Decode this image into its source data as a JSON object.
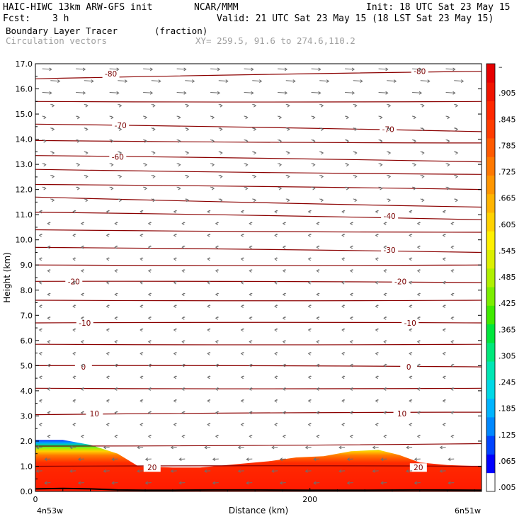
{
  "header": {
    "model": "HAIC-HIWC 13km ARW-GFS init",
    "org": "NCAR/MMM",
    "init": "Init: 18 UTC Sat 23 May 15",
    "fcst_label": "Fcst:",
    "fcst_value": "3 h",
    "valid": "Valid: 21 UTC Sat 23 May 15 (18 LST Sat 23 May 15)",
    "field_name": "Boundary Layer Tracer",
    "field_units": "(fraction)",
    "vector_name": "Circulation vectors",
    "xsec_coords": "XY= 259.5, 91.6 to 274.6,110.2",
    "top_right_tag": "...? |"
  },
  "colors": {
    "contour": "#8b0000",
    "vector": "#6e6e6e",
    "terrain": "#000000"
  },
  "chart_data": {
    "type": "heatmap",
    "xlabel": "Distance (km)",
    "ylabel": "Height (km)",
    "xlim": [
      0,
      325
    ],
    "ylim": [
      0,
      17
    ],
    "x_ticks": [
      {
        "v": 0,
        "label": "0"
      },
      {
        "v": 200,
        "label": "200"
      }
    ],
    "x_endpoints": [
      "4n53w",
      "6n51w"
    ],
    "y_ticks": [
      "0.0",
      "1.0",
      "2.0",
      "3.0",
      "4.0",
      "5.0",
      "6.0",
      "7.0",
      "8.0",
      "9.0",
      "10.0",
      "11.0",
      "12.0",
      "13.0",
      "14.0",
      "15.0",
      "16.0",
      "17.0"
    ],
    "colorbar": {
      "labels": [
        ".005",
        ".065",
        ".125",
        ".185",
        ".245",
        ".305",
        ".365",
        ".425",
        ".485",
        ".545",
        ".605",
        ".665",
        ".725",
        ".785",
        ".845",
        ".905",
        "–"
      ],
      "colors": [
        "#ffffff",
        "#0000ff",
        "#0044ff",
        "#0088ff",
        "#00b4ff",
        "#00d8e6",
        "#00e6b4",
        "#00e87a",
        "#00e63c",
        "#40ea00",
        "#7cee00",
        "#b0f000",
        "#dcf000",
        "#fff000",
        "#ffd200",
        "#ffb400",
        "#ff9600",
        "#ff7800",
        "#ff5a00",
        "#ff3c00",
        "#ff2800",
        "#f01400",
        "#e60000"
      ]
    },
    "isotherms": [
      {
        "label": "-80",
        "y": [
          16.4,
          16.7
        ],
        "label_pos": [
          [
            55,
            16.6
          ],
          [
            280,
            16.7
          ]
        ]
      },
      {
        "label": "",
        "y": [
          15.5,
          15.5
        ]
      },
      {
        "label": "-70",
        "y": [
          14.6,
          14.3
        ],
        "label_pos": [
          [
            62,
            14.55
          ],
          [
            257,
            14.4
          ]
        ]
      },
      {
        "label": "",
        "y": [
          13.95,
          13.85
        ]
      },
      {
        "label": "-60",
        "y": [
          13.35,
          13.1
        ],
        "label_pos": [
          [
            60,
            13.3
          ]
        ]
      },
      {
        "label": "",
        "y": [
          12.8,
          12.6
        ]
      },
      {
        "label": "",
        "y": [
          12.2,
          12.0
        ]
      },
      {
        "label": "",
        "y": [
          11.7,
          11.3
        ]
      },
      {
        "label": "",
        "y": [
          11.1,
          10.8
        ]
      },
      {
        "label": "-40",
        "y": [
          10.4,
          10.3
        ],
        "label_pos": [
          [
            258,
            10.95
          ]
        ]
      },
      {
        "label": "-30",
        "y": [
          9.7,
          9.5
        ],
        "label_pos": [
          [
            258,
            9.6
          ]
        ]
      },
      {
        "label": "",
        "y": [
          9.0,
          9.0
        ]
      },
      {
        "label": "-20",
        "y": [
          8.35,
          8.3
        ],
        "label_pos": [
          [
            28,
            8.35
          ],
          [
            266,
            8.35
          ]
        ]
      },
      {
        "label": "",
        "y": [
          7.6,
          7.6
        ]
      },
      {
        "label": "-10",
        "y": [
          6.7,
          6.7
        ],
        "label_pos": [
          [
            36,
            6.7
          ],
          [
            273,
            6.7
          ]
        ]
      },
      {
        "label": "",
        "y": [
          5.85,
          5.85
        ]
      },
      {
        "label": "0",
        "y": [
          5.0,
          4.95
        ],
        "label_pos": [
          [
            35,
            4.95
          ],
          [
            272,
            4.95
          ]
        ]
      },
      {
        "label": "",
        "y": [
          4.1,
          4.1
        ]
      },
      {
        "label": "10",
        "y": [
          3.05,
          3.15
        ],
        "label_pos": [
          [
            43,
            3.1
          ],
          [
            267,
            3.1
          ]
        ]
      },
      {
        "label": "",
        "y": [
          1.8,
          1.9
        ]
      },
      {
        "label": "20",
        "y": [
          1.0,
          1.0
        ],
        "label_pos": [
          [
            85,
            0.95
          ],
          [
            279,
            0.95
          ]
        ]
      }
    ],
    "tracer_top_km": [
      [
        0,
        2.05
      ],
      [
        20,
        2.05
      ],
      [
        40,
        1.85
      ],
      [
        60,
        1.5
      ],
      [
        75,
        1.0
      ],
      [
        100,
        0.95
      ],
      [
        120,
        0.95
      ],
      [
        130,
        1.0
      ],
      [
        150,
        1.1
      ],
      [
        170,
        1.2
      ],
      [
        190,
        1.35
      ],
      [
        210,
        1.4
      ],
      [
        230,
        1.6
      ],
      [
        250,
        1.65
      ],
      [
        265,
        1.45
      ],
      [
        280,
        1.15
      ],
      [
        300,
        1.05
      ],
      [
        325,
        1.0
      ]
    ],
    "terrain_km": [
      [
        0,
        0.1
      ],
      [
        20,
        0.12
      ],
      [
        40,
        0.1
      ],
      [
        60,
        0.06
      ],
      [
        80,
        0.05
      ],
      [
        100,
        0.05
      ],
      [
        130,
        0.06
      ],
      [
        160,
        0.06
      ],
      [
        200,
        0.05
      ],
      [
        240,
        0.05
      ],
      [
        280,
        0.06
      ],
      [
        325,
        0.05
      ]
    ]
  }
}
